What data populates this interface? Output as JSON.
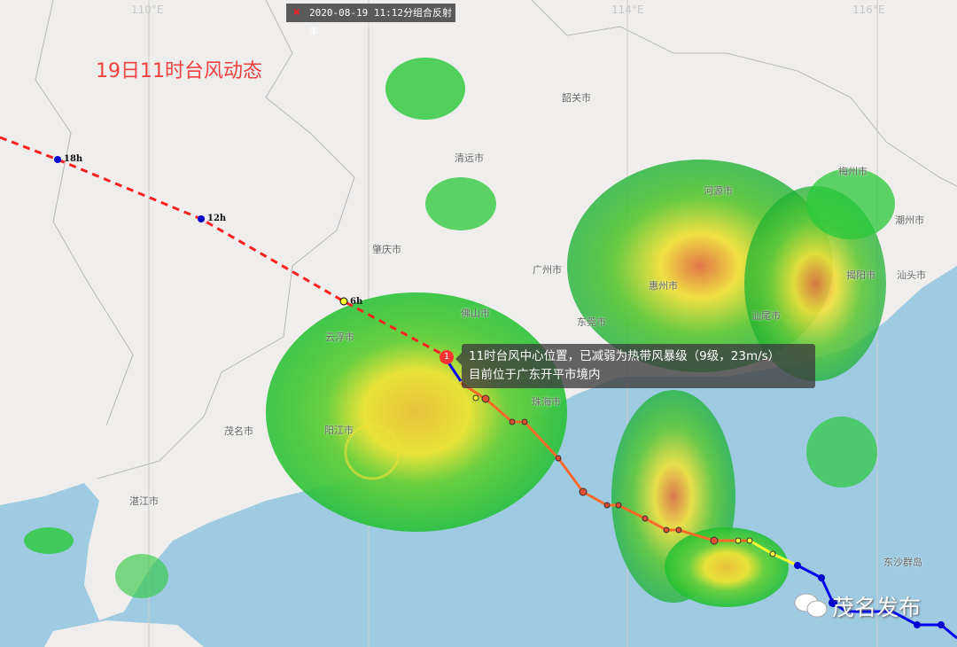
{
  "title": "19日11时台风动态",
  "radar_header": {
    "icon": "close-icon",
    "text": "2020-08-19  11:12分组合反射率"
  },
  "longitudes": [
    "110°E",
    "114°E",
    "116°E"
  ],
  "cities": [
    "韶关市",
    "清远市",
    "河源市",
    "梅州市",
    "潮州市",
    "揭阳市",
    "汕头市",
    "肇庆市",
    "广州市",
    "惠州市",
    "佛山市",
    "东莞市",
    "汕尾市",
    "云浮市",
    "珠海市",
    "阳江市",
    "茂名市",
    "湛江市",
    "东沙群岛"
  ],
  "track_labels": [
    "18h",
    "12h",
    "6h"
  ],
  "typhoon_marker": "1",
  "tooltip": {
    "line1": "11时台风中心位置，已减弱为热带风暴级（9级，23m/s）",
    "line2": "目前位于广东开平市境内"
  },
  "watermark": "茂名发布",
  "colors": {
    "past_track": "#ff2020",
    "forecast_track": "#ff6a2a",
    "current_track": "#0000ff",
    "land": "#efeeec",
    "sea": "#9fcbe2",
    "radar_low": "#21c832",
    "radar_mid": "#f0e632",
    "radar_high": "#e04040"
  }
}
